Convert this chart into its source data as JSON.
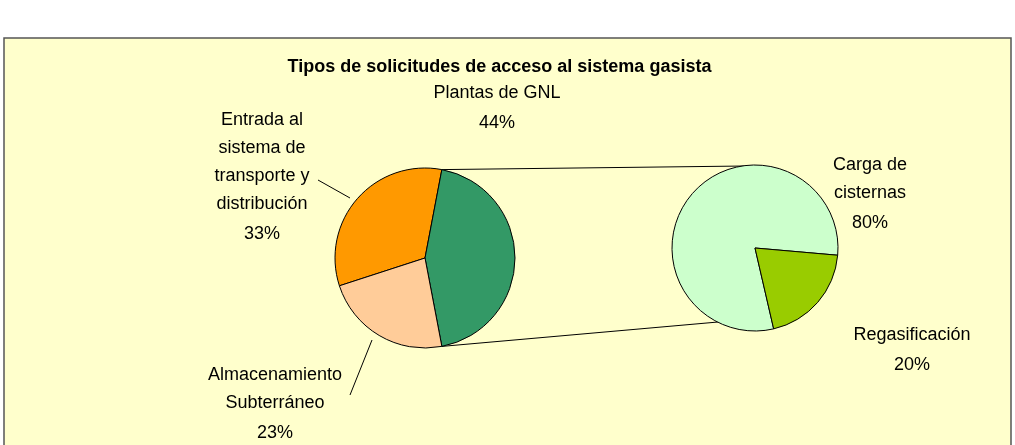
{
  "chart_data": [
    {
      "type": "pie",
      "title": "Tipos de solicitudes de acceso al sistema gasista",
      "categories": [
        "Entrada al sistema de transporte y distribución",
        "Plantas de GNL",
        "Almacenamiento Subterráneo"
      ],
      "values": [
        33,
        44,
        23
      ],
      "value_labels": [
        "33%",
        "44%",
        "23%"
      ],
      "colors": [
        "#ff9900",
        "#339966",
        "#ffcc99"
      ]
    },
    {
      "type": "pie",
      "categories": [
        "Carga de cisternas",
        "Regasificación"
      ],
      "values": [
        80,
        20
      ],
      "value_labels": [
        "80%",
        "20%"
      ],
      "colors": [
        "#ccffcc",
        "#99cc00"
      ]
    }
  ]
}
